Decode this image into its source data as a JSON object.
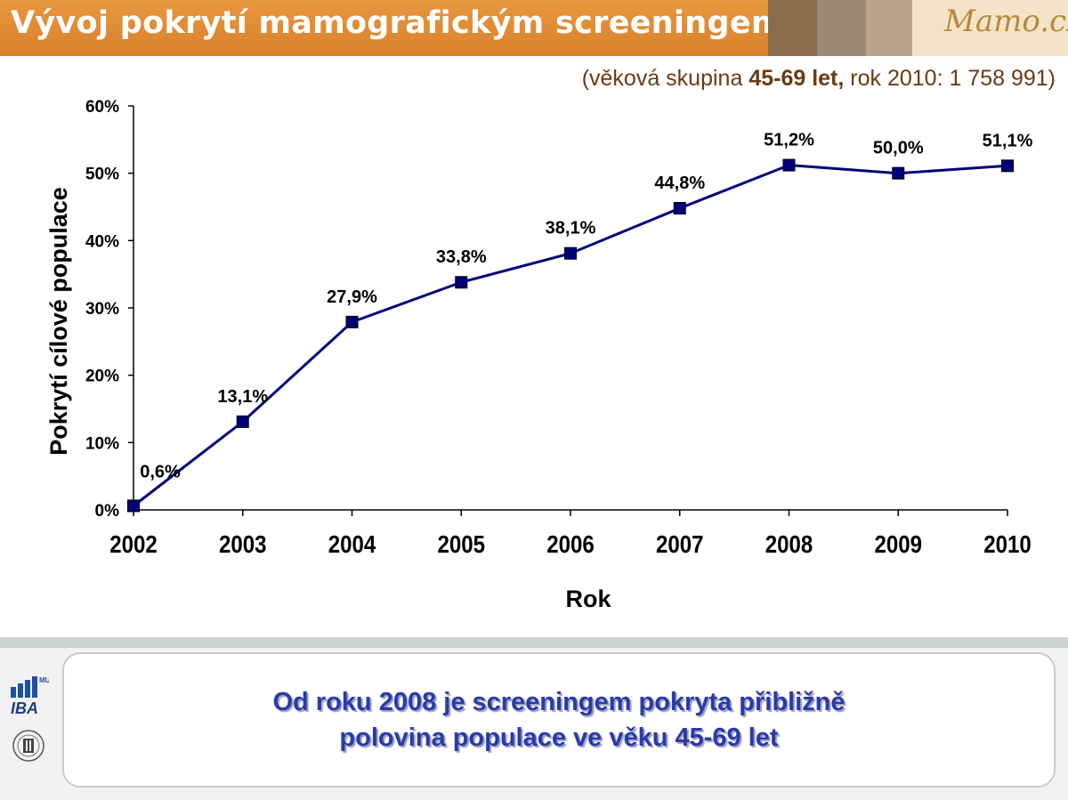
{
  "header": {
    "title": "Vývoj pokrytí mamografickým screeningem",
    "logo_text": "Mamo.cz",
    "accent_color": "#d9822b",
    "strip_colors": [
      "#8c6b4f",
      "#9c8a74",
      "#b8a48c",
      "#cfc1a4"
    ]
  },
  "subtitle": {
    "prefix": "(věková skupina ",
    "bold": "45-69 let,",
    "suffix": " rok 2010: 1 758 991)"
  },
  "chart_data": {
    "type": "line",
    "xlabel": "Rok",
    "ylabel": "Pokrytí cílové populace",
    "categories": [
      "2002",
      "2003",
      "2004",
      "2005",
      "2006",
      "2007",
      "2008",
      "2009",
      "2010"
    ],
    "series": [
      {
        "values": [
          0.6,
          13.1,
          27.9,
          33.8,
          38.1,
          44.8,
          51.2,
          50.0,
          51.1
        ],
        "labels": [
          "0,6%",
          "13,1%",
          "27,9%",
          "33,8%",
          "38,1%",
          "44,8%",
          "51,2%",
          "50,0%",
          "51,1%"
        ],
        "color": "#00007a"
      }
    ],
    "ylim": [
      0,
      60
    ],
    "yticks": [
      "0%",
      "10%",
      "20%",
      "30%",
      "40%",
      "50%",
      "60%"
    ],
    "grid": false,
    "legend": "none"
  },
  "footer": {
    "message_line1": "Od roku 2008 je screeningem pokryta přibližně",
    "message_line2": "polovina populace ve věku 45-69 let",
    "message_color": "#2b3aa8",
    "logo_iba_text": "IBA",
    "logo_mu_text": "MU"
  }
}
